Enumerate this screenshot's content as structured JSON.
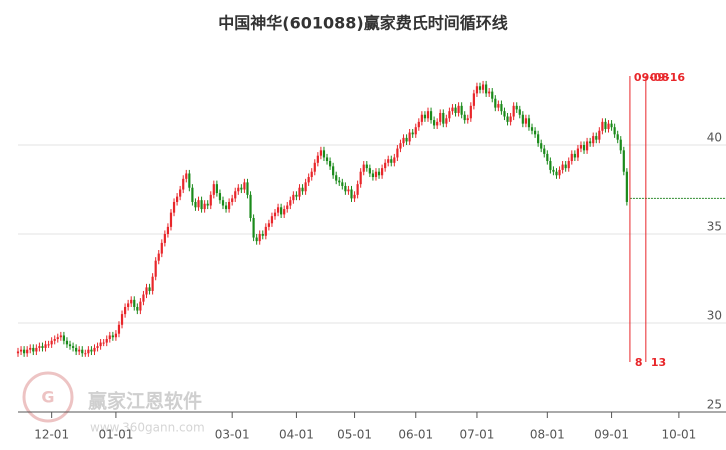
{
  "chart_data": {
    "type": "candlestick",
    "title": "中国神华(601088)赢家费氏时间循环线",
    "watermark": {
      "name": "赢家江恩软件",
      "url": "www.360gann.com"
    },
    "up_color": "#e8262a",
    "down_color": "#1a8a1a",
    "xlim": [
      0,
      231.4
    ],
    "ylim": [
      25,
      45
    ],
    "yticks": [
      25,
      30,
      35,
      40
    ],
    "grid": true,
    "xticks": [
      {
        "value": 11,
        "label": "12-01"
      },
      {
        "value": 32,
        "label": "01-01"
      },
      {
        "value": 70,
        "label": "03-01"
      },
      {
        "value": 91,
        "label": "04-01"
      },
      {
        "value": 110,
        "label": "05-01"
      },
      {
        "value": 130,
        "label": "06-01"
      },
      {
        "value": 150,
        "label": "07-01"
      },
      {
        "value": 173,
        "label": "08-01"
      },
      {
        "value": 194,
        "label": "09-01"
      },
      {
        "value": 216,
        "label": "10-01"
      }
    ],
    "open": [
      28.3,
      28.4,
      28.5,
      28.3,
      28.5,
      28.6,
      28.4,
      28.6,
      28.7,
      28.6,
      28.8,
      28.8,
      29.0,
      29.1,
      29.2,
      29.3,
      29.0,
      28.8,
      28.7,
      28.6,
      28.4,
      28.5,
      28.3,
      28.3,
      28.5,
      28.4,
      28.6,
      28.7,
      28.9,
      28.9,
      29.1,
      29.3,
      29.2,
      29.4,
      29.9,
      30.5,
      30.9,
      31.1,
      31.3,
      30.9,
      30.7,
      31.2,
      31.6,
      32.0,
      31.8,
      32.6,
      33.5,
      33.9,
      34.5,
      35.0,
      35.4,
      36.2,
      36.8,
      37.1,
      37.5,
      38.1,
      38.4,
      37.6,
      36.8,
      36.5,
      36.9,
      36.4,
      36.7,
      36.6,
      37.2,
      37.8,
      37.3,
      36.9,
      36.6,
      36.4,
      36.8,
      37.0,
      37.4,
      37.6,
      37.5,
      37.9,
      37.2,
      35.9,
      34.8,
      34.6,
      35.0,
      34.9,
      35.4,
      35.6,
      36.0,
      36.2,
      36.5,
      36.1,
      36.4,
      36.6,
      36.9,
      37.2,
      37.1,
      37.6,
      37.4,
      37.9,
      38.2,
      38.5,
      39.0,
      39.4,
      39.7,
      39.3,
      39.1,
      38.8,
      38.3,
      38.0,
      37.9,
      37.7,
      37.4,
      37.5,
      37.0,
      37.2,
      37.8,
      38.5,
      38.9,
      38.7,
      38.4,
      38.2,
      38.5,
      38.3,
      38.7,
      39.0,
      39.2,
      39.0,
      39.3,
      39.8,
      40.1,
      40.4,
      40.2,
      40.7,
      40.6,
      41.0,
      41.3,
      41.7,
      41.5,
      41.9,
      41.4,
      41.1,
      41.3,
      41.8,
      41.2,
      41.5,
      41.9,
      42.1,
      41.8,
      42.2,
      41.7,
      41.4,
      41.5,
      42.2,
      42.9,
      43.3,
      43.1,
      43.4,
      42.9,
      43.0,
      42.6,
      42.1,
      42.3,
      41.9,
      41.6,
      41.3,
      41.6,
      42.2,
      42.0,
      41.7,
      41.2,
      41.5,
      41.0,
      40.8,
      40.6,
      40.1,
      39.8,
      39.5,
      39.1,
      38.6,
      38.5,
      38.3,
      38.6,
      38.9,
      38.7,
      39.1,
      39.5,
      39.3,
      39.8,
      40.0,
      39.7,
      40.2,
      40.1,
      40.5,
      40.3,
      40.8,
      41.3,
      40.9,
      41.2,
      41.0,
      40.6,
      40.3,
      39.7,
      38.5
    ],
    "high": [
      28.6,
      28.7,
      28.7,
      28.7,
      28.8,
      28.8,
      28.8,
      28.9,
      28.9,
      29.0,
      29.0,
      29.2,
      29.3,
      29.4,
      29.5,
      29.5,
      29.2,
      29.0,
      28.9,
      28.8,
      28.7,
      28.7,
      28.5,
      28.7,
      28.7,
      28.8,
      28.9,
      29.1,
      29.1,
      29.3,
      29.5,
      29.5,
      29.6,
      30.1,
      30.7,
      31.1,
      31.3,
      31.5,
      31.5,
      31.1,
      31.4,
      31.8,
      32.2,
      32.2,
      32.8,
      33.7,
      34.1,
      34.7,
      35.2,
      35.6,
      36.4,
      37.0,
      37.3,
      37.7,
      38.3,
      38.6,
      38.6,
      37.8,
      37.0,
      37.1,
      37.1,
      36.9,
      36.9,
      37.4,
      38.0,
      38.0,
      37.5,
      37.1,
      36.8,
      37.0,
      37.2,
      37.6,
      37.8,
      37.8,
      38.1,
      38.1,
      37.4,
      36.1,
      35.0,
      35.2,
      35.2,
      35.6,
      35.8,
      36.2,
      36.4,
      36.7,
      36.7,
      36.6,
      36.8,
      37.1,
      37.4,
      37.4,
      37.8,
      37.8,
      38.1,
      38.4,
      38.7,
      39.2,
      39.6,
      39.9,
      39.9,
      39.5,
      39.3,
      39.0,
      38.5,
      38.2,
      38.1,
      37.9,
      37.7,
      37.7,
      37.4,
      38.0,
      38.7,
      39.1,
      39.1,
      38.9,
      38.6,
      38.7,
      38.7,
      38.9,
      39.2,
      39.4,
      39.4,
      39.5,
      40.0,
      40.3,
      40.6,
      40.6,
      40.9,
      40.9,
      41.2,
      41.5,
      41.9,
      41.9,
      42.1,
      42.1,
      41.6,
      41.5,
      42.0,
      42.0,
      41.7,
      42.1,
      42.3,
      42.3,
      42.4,
      42.4,
      41.9,
      41.7,
      42.4,
      43.1,
      43.5,
      43.5,
      43.6,
      43.6,
      43.2,
      43.2,
      42.8,
      42.5,
      42.5,
      42.1,
      41.8,
      41.8,
      42.4,
      42.4,
      42.2,
      41.9,
      41.7,
      41.7,
      41.2,
      41.0,
      40.8,
      40.3,
      40.0,
      39.7,
      39.3,
      38.8,
      38.7,
      38.8,
      39.1,
      39.1,
      39.3,
      39.7,
      39.7,
      40.0,
      40.2,
      40.2,
      40.4,
      40.4,
      40.7,
      40.7,
      41.0,
      41.5,
      41.5,
      41.4,
      41.4,
      41.2,
      40.8,
      40.5,
      39.9,
      38.7
    ],
    "low": [
      28.1,
      28.2,
      28.1,
      28.1,
      28.3,
      28.2,
      28.2,
      28.4,
      28.4,
      28.4,
      28.6,
      28.6,
      28.8,
      28.9,
      29.0,
      28.8,
      28.6,
      28.5,
      28.4,
      28.2,
      28.2,
      28.1,
      28.1,
      28.1,
      28.2,
      28.2,
      28.4,
      28.5,
      28.7,
      28.7,
      28.9,
      29.0,
      29.0,
      29.2,
      29.7,
      30.3,
      30.7,
      30.9,
      30.7,
      30.5,
      30.5,
      31.0,
      31.4,
      31.6,
      31.6,
      32.4,
      33.3,
      33.7,
      34.3,
      34.8,
      35.2,
      36.0,
      36.6,
      36.9,
      37.3,
      37.9,
      37.4,
      36.6,
      36.3,
      36.3,
      36.2,
      36.2,
      36.4,
      36.4,
      37.0,
      37.1,
      36.7,
      36.4,
      36.2,
      36.2,
      36.6,
      36.8,
      37.2,
      37.3,
      37.3,
      37.0,
      35.7,
      34.6,
      34.4,
      34.4,
      34.7,
      34.7,
      35.2,
      35.4,
      35.8,
      36.0,
      35.9,
      35.9,
      36.2,
      36.4,
      36.7,
      36.9,
      36.9,
      37.2,
      37.2,
      37.7,
      38.0,
      38.3,
      38.8,
      39.2,
      39.1,
      38.9,
      38.6,
      38.1,
      37.8,
      37.7,
      37.5,
      37.2,
      37.2,
      36.8,
      36.8,
      37.0,
      37.6,
      38.3,
      38.5,
      38.2,
      38.0,
      38.0,
      38.1,
      38.1,
      38.5,
      38.8,
      38.8,
      38.8,
      39.1,
      39.6,
      39.9,
      40.0,
      40.0,
      40.4,
      40.4,
      40.8,
      41.1,
      41.3,
      41.3,
      41.2,
      40.9,
      40.9,
      41.1,
      41.0,
      41.0,
      41.3,
      41.7,
      41.6,
      41.6,
      41.5,
      41.2,
      41.2,
      41.3,
      42.0,
      42.7,
      42.9,
      42.9,
      42.7,
      42.7,
      42.4,
      41.9,
      41.9,
      41.7,
      41.4,
      41.1,
      41.1,
      41.4,
      41.8,
      41.5,
      41.0,
      41.0,
      40.8,
      40.6,
      40.4,
      39.9,
      39.6,
      39.3,
      38.9,
      38.4,
      38.3,
      38.1,
      38.1,
      38.4,
      38.5,
      38.5,
      38.9,
      39.1,
      39.1,
      39.6,
      39.5,
      39.5,
      39.9,
      39.9,
      40.1,
      40.1,
      40.6,
      40.7,
      40.7,
      40.8,
      40.4,
      40.1,
      39.5,
      38.3,
      36.6
    ],
    "close": [
      28.4,
      28.5,
      28.3,
      28.5,
      28.6,
      28.4,
      28.6,
      28.7,
      28.6,
      28.8,
      28.8,
      29.0,
      29.1,
      29.2,
      29.3,
      29.0,
      28.8,
      28.7,
      28.6,
      28.4,
      28.5,
      28.3,
      28.3,
      28.5,
      28.4,
      28.6,
      28.7,
      28.9,
      28.9,
      29.1,
      29.3,
      29.2,
      29.4,
      29.9,
      30.5,
      30.9,
      31.1,
      31.3,
      30.9,
      30.7,
      31.2,
      31.6,
      32.0,
      31.8,
      32.6,
      33.5,
      33.9,
      34.5,
      35.0,
      35.4,
      36.2,
      36.8,
      37.1,
      37.5,
      38.1,
      38.4,
      37.6,
      36.8,
      36.5,
      36.9,
      36.4,
      36.7,
      36.6,
      37.2,
      37.8,
      37.3,
      36.9,
      36.6,
      36.4,
      36.8,
      37.0,
      37.4,
      37.6,
      37.5,
      37.9,
      37.2,
      35.9,
      34.8,
      34.6,
      35.0,
      34.9,
      35.4,
      35.6,
      36.0,
      36.2,
      36.5,
      36.1,
      36.4,
      36.6,
      36.9,
      37.2,
      37.1,
      37.6,
      37.4,
      37.9,
      38.2,
      38.5,
      39.0,
      39.4,
      39.7,
      39.3,
      39.1,
      38.8,
      38.3,
      38.0,
      37.9,
      37.7,
      37.4,
      37.5,
      37.0,
      37.2,
      37.8,
      38.5,
      38.9,
      38.7,
      38.4,
      38.2,
      38.5,
      38.3,
      38.7,
      39.0,
      39.2,
      39.0,
      39.3,
      39.8,
      40.1,
      40.4,
      40.2,
      40.7,
      40.6,
      41.0,
      41.3,
      41.7,
      41.5,
      41.9,
      41.4,
      41.1,
      41.3,
      41.8,
      41.2,
      41.5,
      41.9,
      42.1,
      41.8,
      42.2,
      41.7,
      41.4,
      41.5,
      42.2,
      42.9,
      43.3,
      43.1,
      43.4,
      42.9,
      43.0,
      42.6,
      42.1,
      42.3,
      41.9,
      41.6,
      41.3,
      41.6,
      42.2,
      42.0,
      41.7,
      41.2,
      41.5,
      41.0,
      40.8,
      40.6,
      40.1,
      39.8,
      39.5,
      39.1,
      38.6,
      38.5,
      38.3,
      38.6,
      38.9,
      38.7,
      39.1,
      39.5,
      39.3,
      39.8,
      40.0,
      39.7,
      40.2,
      40.1,
      40.5,
      40.3,
      40.8,
      41.3,
      40.9,
      41.2,
      41.0,
      40.6,
      40.3,
      39.7,
      38.5,
      36.8
    ],
    "reference_line": {
      "value": 37.0,
      "color": "#2e8b2e"
    },
    "cycle_lines": [
      {
        "x": 200,
        "top_label": "09-08",
        "bottom_label": "8"
      },
      {
        "x": 205.2,
        "top_label": "09-16",
        "bottom_label": "13"
      }
    ],
    "cycle_color": "#e8262a"
  }
}
